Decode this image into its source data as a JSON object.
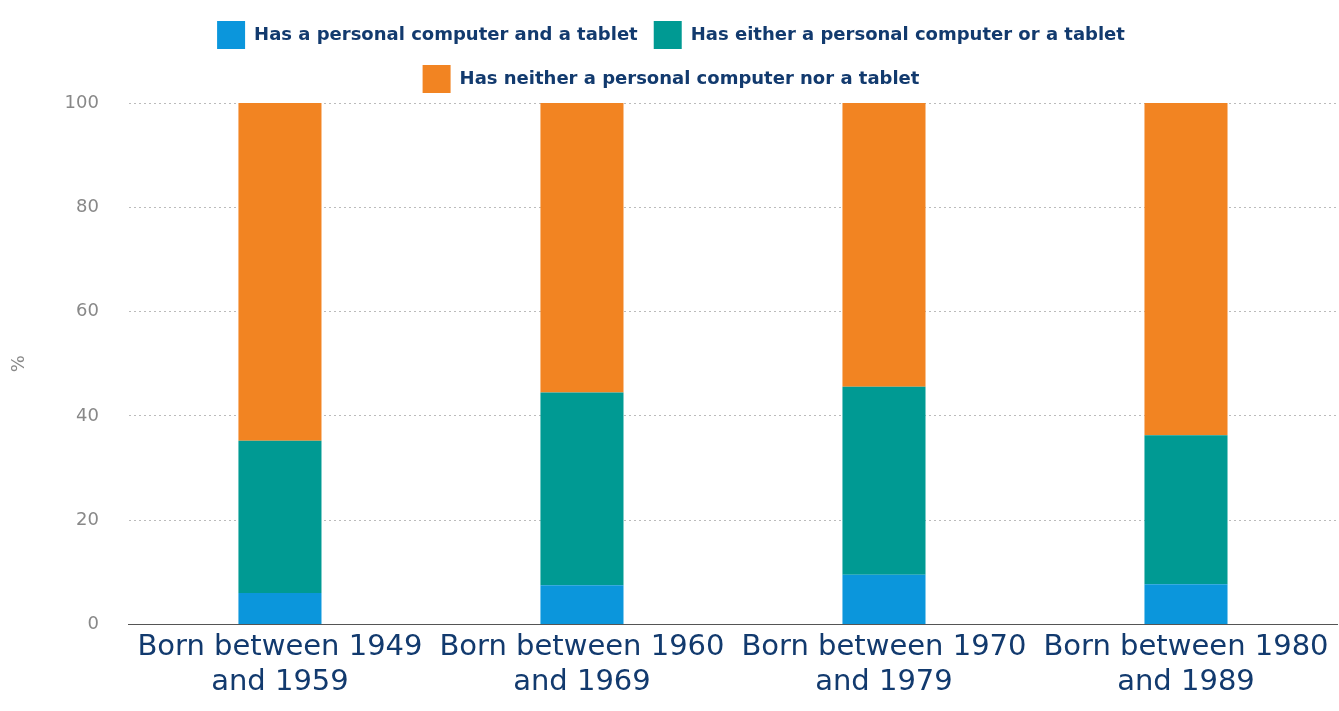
{
  "chart_data": {
    "type": "bar",
    "stacked": true,
    "ylabel": "%",
    "categories": [
      "Born between 1949 and 1959",
      "Born between 1960 and 1969",
      "Born between 1970 and 1979",
      "Born between 1980 and 1989"
    ],
    "series": [
      {
        "name": "Has a personal computer and a tablet",
        "color": "#0b96dc",
        "values": [
          6,
          7.5,
          9.5,
          7.7
        ]
      },
      {
        "name": "Has either a personal computer or a tablet",
        "color": "#009a93",
        "values": [
          29.2,
          37,
          36.1,
          28.6
        ]
      },
      {
        "name": "Has neither a personal computer nor a tablet",
        "color": "#f28422",
        "values": [
          64.8,
          55.5,
          54.4,
          63.7
        ]
      }
    ],
    "ylim": [
      0,
      100
    ],
    "yticks": [
      0,
      20,
      40,
      60,
      80,
      100
    ],
    "grid": "y",
    "legend": "top"
  }
}
